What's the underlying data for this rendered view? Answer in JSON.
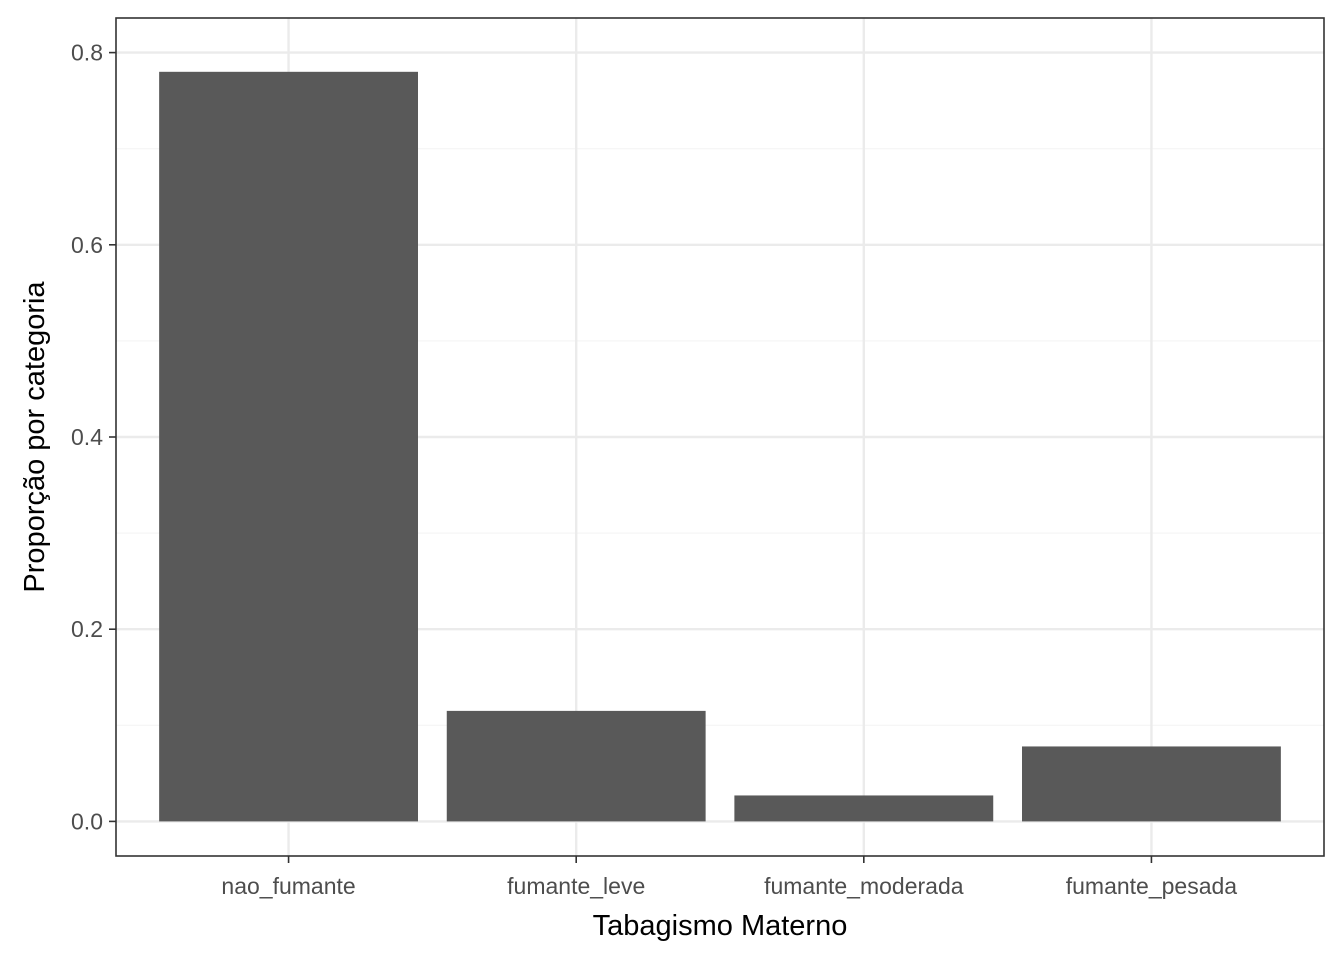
{
  "chart_data": {
    "type": "bar",
    "title": "",
    "xlabel": "Tabagismo Materno",
    "ylabel": "Proporção por categoria",
    "categories": [
      "nao_fumante",
      "fumante_leve",
      "fumante_moderada",
      "fumante_pesada"
    ],
    "values": [
      0.78,
      0.115,
      0.027,
      0.078
    ],
    "ylim": [
      -0.036,
      0.836
    ],
    "yticks": [
      0.0,
      0.2,
      0.4,
      0.6,
      0.8
    ],
    "ytick_labels": [
      "0.0",
      "0.2",
      "0.4",
      "0.6",
      "0.8"
    ],
    "grid": true,
    "legend": "none",
    "colors": {
      "bar": "#595959",
      "grid_major": "#ebebeb",
      "grid_minor": "#f5f5f5",
      "panel_border": "#333333",
      "tick_text": "#4d4d4d",
      "axis_title": "#000000"
    }
  }
}
